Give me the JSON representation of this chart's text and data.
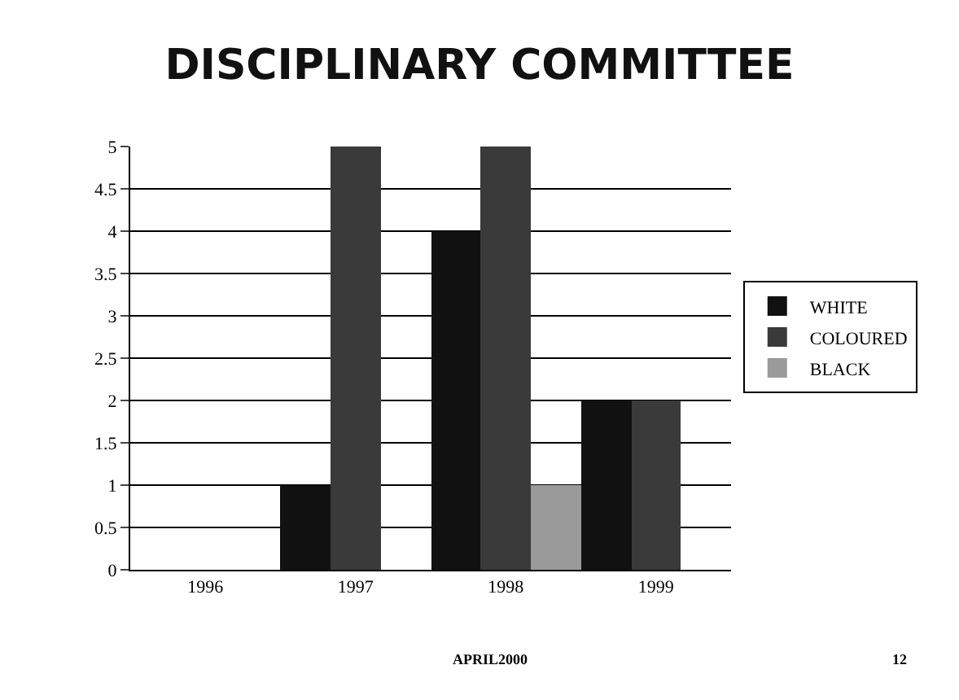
{
  "chart_data": {
    "type": "bar",
    "title": "DISCIPLINARY COMMITTEE",
    "categories": [
      "1996",
      "1997",
      "1998",
      "1999"
    ],
    "series": [
      {
        "name": "WHITE",
        "color": "#111111",
        "values": [
          0,
          1,
          4,
          2
        ]
      },
      {
        "name": "COLOURED",
        "color": "#3a3a3a",
        "values": [
          0,
          5,
          5,
          2
        ]
      },
      {
        "name": "BLACK",
        "color": "#9a9a9a",
        "values": [
          0,
          0,
          1,
          0
        ]
      }
    ],
    "ylim": [
      0,
      5
    ],
    "yticks": [
      0,
      0.5,
      1,
      1.5,
      2,
      2.5,
      3,
      3.5,
      4,
      4.5,
      5
    ],
    "grid": "y",
    "legend": "right",
    "annotations": [
      "APRIL2000",
      "12"
    ]
  }
}
